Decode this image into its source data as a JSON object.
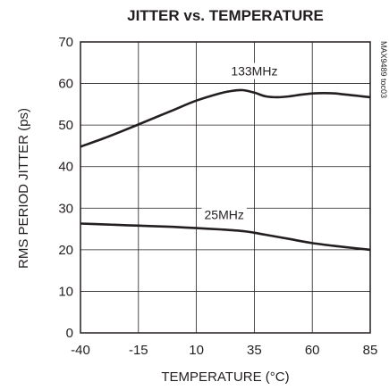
{
  "chart_data": {
    "type": "line",
    "title": "JITTER vs. TEMPERATURE",
    "xlabel": "TEMPERATURE (°C)",
    "ylabel": "RMS PERIOD JITTER (ps)",
    "xlim": [
      -40,
      85
    ],
    "ylim": [
      0,
      70
    ],
    "xticks": [
      -40,
      -15,
      10,
      35,
      60,
      85
    ],
    "yticks": [
      0,
      10,
      20,
      30,
      40,
      50,
      60,
      70
    ],
    "grid": true,
    "legend": "none",
    "part_number": "MAX9489 toc03",
    "series": [
      {
        "name": "133MHz",
        "x": [
          -40,
          -30,
          -20,
          -10,
          0,
          10,
          20,
          25,
          30,
          35,
          40,
          45,
          50,
          55,
          60,
          65,
          70,
          75,
          80,
          85
        ],
        "y": [
          44.8,
          46.8,
          49.0,
          51.3,
          53.6,
          55.9,
          57.6,
          58.2,
          58.4,
          57.8,
          56.9,
          56.7,
          56.9,
          57.3,
          57.6,
          57.7,
          57.6,
          57.3,
          57.0,
          56.7
        ]
      },
      {
        "name": "25MHz",
        "x": [
          -40,
          -30,
          -20,
          -10,
          0,
          10,
          20,
          30,
          35,
          40,
          50,
          60,
          70,
          80,
          85
        ],
        "y": [
          26.3,
          26.1,
          25.9,
          25.7,
          25.5,
          25.2,
          24.9,
          24.5,
          24.1,
          23.6,
          22.6,
          21.6,
          20.9,
          20.3,
          20.0
        ]
      }
    ],
    "series_labels": [
      {
        "text": "133MHz",
        "x": 35,
        "y": 63
      },
      {
        "text": "25MHz",
        "x": 22,
        "y": 28.5
      }
    ],
    "colors": {
      "line": "#231f20",
      "grid": "#231f20",
      "frame": "#231f20"
    }
  }
}
